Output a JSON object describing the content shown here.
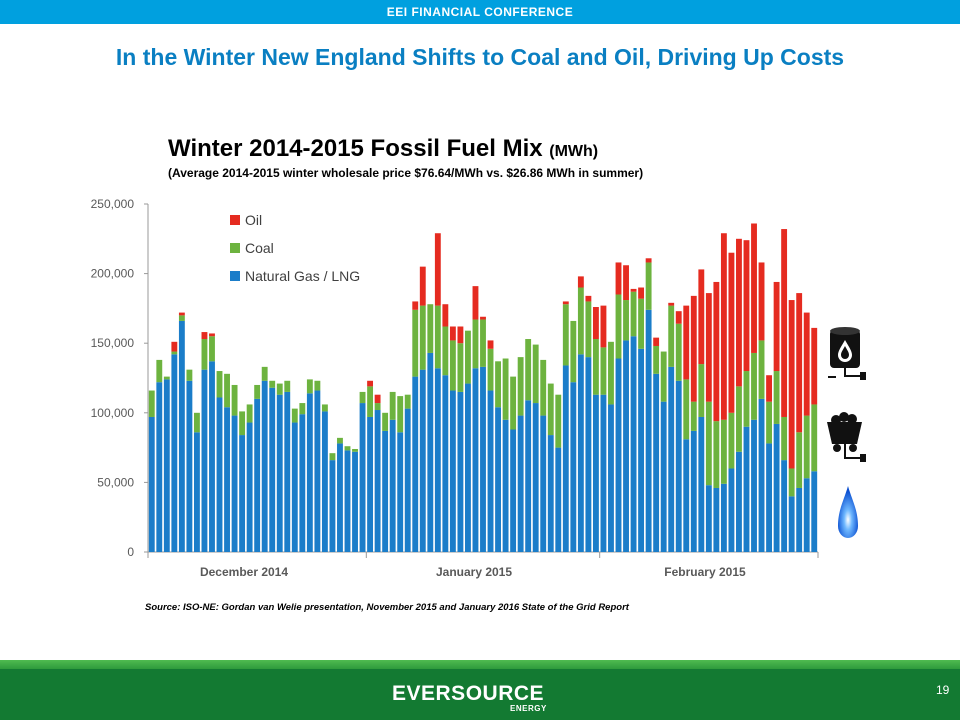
{
  "header": {
    "banner": "EEI FINANCIAL CONFERENCE"
  },
  "slide": {
    "title": "In the Winter New England Shifts to Coal and Oil, Driving Up Costs"
  },
  "source_note": "Source: ISO-NE: Gordan van Welie presentation, November 2015 and January 2016 State of the Grid Report",
  "footer": {
    "logo": "EVERSOURCE",
    "logo_sub": "ENERGY",
    "page_number": "19"
  },
  "colors": {
    "gas": "#1b7dc9",
    "coal": "#6db33f",
    "oil": "#e52b20",
    "brand_blue": "#00a0df",
    "brand_green": "#137a32"
  },
  "icons": [
    "oil-barrel-plug-icon",
    "coal-cart-plug-icon",
    "gas-flame-icon"
  ],
  "chart_data": {
    "type": "bar",
    "stacked": true,
    "title": "Winter 2014-2015 Fossil Fuel Mix",
    "title_unit": "(MWh)",
    "subtitle": "(Average 2014-2015 winter wholesale price $76.64/MWh vs. $26.86 MWh in summer)",
    "xlabel": "",
    "ylabel": "",
    "ylim": [
      0,
      250000
    ],
    "yticks": [
      0,
      50000,
      100000,
      150000,
      200000,
      250000
    ],
    "ytick_labels": [
      "0",
      "50,000",
      "100,000",
      "150,000",
      "200,000",
      "250,000"
    ],
    "x_group_labels": [
      "December 2014",
      "January 2015",
      "February 2015"
    ],
    "legend": {
      "position": "top-left",
      "entries": [
        "Oil",
        "Coal",
        "Natural Gas / LNG"
      ]
    },
    "grid": false,
    "series": [
      {
        "name": "Natural Gas / LNG",
        "color": "#1b7dc9",
        "values": [
          97000,
          122000,
          124000,
          142000,
          166000,
          123000,
          86000,
          131000,
          137000,
          111000,
          104000,
          98000,
          84000,
          93000,
          110000,
          123000,
          118000,
          113000,
          115000,
          93000,
          99000,
          114000,
          116000,
          101000,
          66000,
          78000,
          73000,
          72000,
          107000,
          97000,
          102000,
          87000,
          95000,
          86000,
          103000,
          126000,
          131000,
          143000,
          132000,
          127000,
          116000,
          115000,
          121000,
          132000,
          133000,
          116000,
          104000,
          95000,
          88000,
          98000,
          109000,
          107000,
          98000,
          84000,
          75000,
          134000,
          122000,
          142000,
          140000,
          113000,
          113000,
          106000,
          139000,
          152000,
          155000,
          146000,
          174000,
          128000,
          108000,
          133000,
          123000,
          81000,
          87000,
          97000,
          48000,
          46000,
          49000,
          60000,
          72000,
          90000,
          95000,
          110000,
          78000,
          92000,
          66000,
          40000,
          46000,
          53000,
          58000
        ]
      },
      {
        "name": "Coal",
        "color": "#6db33f",
        "values": [
          19000,
          16000,
          2000,
          2000,
          4000,
          8000,
          14000,
          22000,
          18000,
          19000,
          24000,
          22000,
          17000,
          13000,
          10000,
          10000,
          5000,
          8000,
          8000,
          10000,
          8000,
          10000,
          7000,
          5000,
          5000,
          4000,
          3000,
          2000,
          8000,
          22000,
          5000,
          13000,
          20000,
          26000,
          10000,
          48000,
          46000,
          35000,
          45000,
          35000,
          36000,
          35000,
          38000,
          35000,
          34000,
          30000,
          33000,
          44000,
          38000,
          42000,
          44000,
          42000,
          40000,
          37000,
          38000,
          44000,
          44000,
          48000,
          40000,
          40000,
          34000,
          45000,
          46000,
          29000,
          32000,
          36000,
          34000,
          20000,
          36000,
          44000,
          41000,
          43000,
          21000,
          38000,
          60000,
          48000,
          46000,
          40000,
          47000,
          40000,
          48000,
          42000,
          30000,
          38000,
          31000,
          20000,
          40000,
          45000,
          48000
        ]
      },
      {
        "name": "Oil",
        "color": "#e52b20",
        "values": [
          0,
          0,
          0,
          7000,
          2000,
          0,
          0,
          5000,
          2000,
          0,
          0,
          0,
          0,
          0,
          0,
          0,
          0,
          0,
          0,
          0,
          0,
          0,
          0,
          0,
          0,
          0,
          0,
          0,
          0,
          4000,
          6000,
          0,
          0,
          0,
          0,
          6000,
          28000,
          0,
          52000,
          16000,
          10000,
          12000,
          0,
          24000,
          2000,
          6000,
          0,
          0,
          0,
          0,
          0,
          0,
          0,
          0,
          0,
          2000,
          0,
          8000,
          4000,
          23000,
          30000,
          0,
          23000,
          25000,
          2000,
          8000,
          3000,
          6000,
          0,
          2000,
          9000,
          53000,
          76000,
          68000,
          78000,
          100000,
          134000,
          115000,
          106000,
          94000,
          93000,
          56000,
          19000,
          64000,
          135000,
          121000,
          100000,
          74000,
          55000
        ]
      }
    ]
  }
}
